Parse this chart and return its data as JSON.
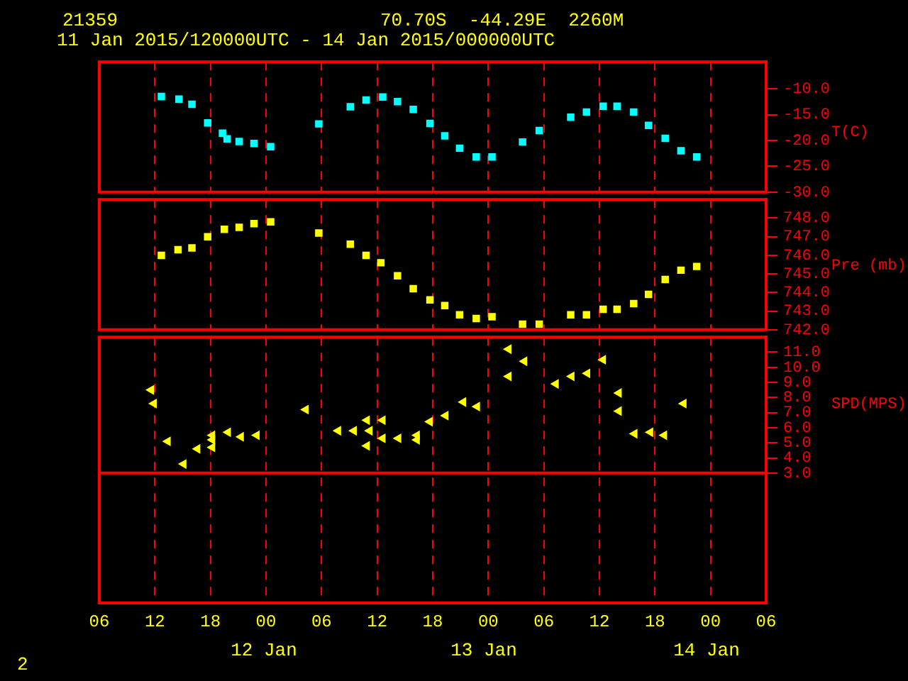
{
  "chart_data": [
    {
      "type": "scatter",
      "title": "21359",
      "subtitle": "11 Jan 2015/120000UTC - 14 Jan 2015/000000UTC",
      "annotations": [
        "70.70S  -44.29E  2260M"
      ],
      "ylabel": "T(C)",
      "marker": "square",
      "grid": "x",
      "tick_labels": "y",
      "xlim": [
        6,
        78
      ],
      "xticks": [
        {
          "value": 6,
          "label": null
        },
        {
          "value": 12,
          "label": null
        },
        {
          "value": 18,
          "label": null
        },
        {
          "value": 24,
          "label": null
        },
        {
          "value": 30,
          "label": null
        },
        {
          "value": 36,
          "label": null
        },
        {
          "value": 42,
          "label": null
        },
        {
          "value": 48,
          "label": null
        },
        {
          "value": 54,
          "label": null
        },
        {
          "value": 60,
          "label": null
        },
        {
          "value": 66,
          "label": null
        },
        {
          "value": 72,
          "label": null
        },
        {
          "value": 78,
          "label": null
        }
      ],
      "ylim": [
        -30,
        -4.8
      ],
      "yticks": [
        {
          "value": -10,
          "label": "-10.0"
        },
        {
          "value": -15,
          "label": "-15.0"
        },
        {
          "value": -20,
          "label": "-20.0"
        },
        {
          "value": -25,
          "label": "-25.0"
        },
        {
          "value": -30,
          "label": "-30.0"
        }
      ],
      "series": [
        {
          "color": "#00ffff",
          "x": [
            12.7,
            14.6,
            16.0,
            17.7,
            19.3,
            19.8,
            21.1,
            22.7,
            24.5,
            29.7,
            33.1,
            34.8,
            36.6,
            38.2,
            39.9,
            41.7,
            43.3,
            44.9,
            46.7,
            48.4,
            51.7,
            53.5,
            56.9,
            58.6,
            60.4,
            61.9,
            63.7,
            65.3,
            67.1,
            68.8,
            70.5
          ],
          "values": [
            -11.5,
            -12.0,
            -13.0,
            -16.6,
            -18.6,
            -19.7,
            -20.2,
            -20.6,
            -21.2,
            -16.8,
            -13.5,
            -12.2,
            -11.6,
            -12.5,
            -14.0,
            -16.7,
            -19.1,
            -21.5,
            -23.2,
            -23.2,
            -20.3,
            -18.1,
            -15.5,
            -14.5,
            -13.4,
            -13.4,
            -14.5,
            -17.1,
            -19.6,
            -22.0,
            -23.2
          ]
        }
      ]
    },
    {
      "type": "scatter",
      "ylabel": "Pre (mb)",
      "marker": "square",
      "grid": "x",
      "tick_labels": "y",
      "xlim": [
        6,
        78
      ],
      "xticks": [
        {
          "value": 6,
          "label": null
        },
        {
          "value": 12,
          "label": null
        },
        {
          "value": 18,
          "label": null
        },
        {
          "value": 24,
          "label": null
        },
        {
          "value": 30,
          "label": null
        },
        {
          "value": 36,
          "label": null
        },
        {
          "value": 42,
          "label": null
        },
        {
          "value": 48,
          "label": null
        },
        {
          "value": 54,
          "label": null
        },
        {
          "value": 60,
          "label": null
        },
        {
          "value": 66,
          "label": null
        },
        {
          "value": 72,
          "label": null
        },
        {
          "value": 78,
          "label": null
        }
      ],
      "ylim": [
        742,
        749
      ],
      "yticks": [
        {
          "value": 742,
          "label": "742.0"
        },
        {
          "value": 743,
          "label": "743.0"
        },
        {
          "value": 744,
          "label": "744.0"
        },
        {
          "value": 745,
          "label": "745.0"
        },
        {
          "value": 746,
          "label": "746.0"
        },
        {
          "value": 747,
          "label": "747.0"
        },
        {
          "value": 748,
          "label": "748.0"
        }
      ],
      "series": [
        {
          "color": "#ffff00",
          "x": [
            12.7,
            14.5,
            16.0,
            17.7,
            19.5,
            21.1,
            22.7,
            24.5,
            29.7,
            33.1,
            34.8,
            36.4,
            38.2,
            39.9,
            41.7,
            43.3,
            44.9,
            46.7,
            48.4,
            51.7,
            53.5,
            56.9,
            58.6,
            60.4,
            61.9,
            63.7,
            65.3,
            67.1,
            68.8,
            70.5
          ],
          "values": [
            746.0,
            746.3,
            746.4,
            747.0,
            747.4,
            747.5,
            747.7,
            747.8,
            747.2,
            746.6,
            746.0,
            745.6,
            744.9,
            744.2,
            743.6,
            743.3,
            742.8,
            742.6,
            742.7,
            742.3,
            742.3,
            742.8,
            742.8,
            743.1,
            743.1,
            743.4,
            743.9,
            744.7,
            745.2,
            745.4
          ]
        }
      ]
    },
    {
      "type": "scatter",
      "ylabel": "SPD(MPS)",
      "marker": "triangle",
      "grid": "x",
      "annotations": [
        "12 Jan",
        "13 Jan",
        "14 Jan",
        "2"
      ],
      "ref_lines": [
        {
          "axis": "y",
          "value": 3,
          "color": "#ff0000"
        }
      ],
      "xlim": [
        6,
        78
      ],
      "xticks": [
        {
          "value": 6,
          "label": "06"
        },
        {
          "value": 12,
          "label": "12"
        },
        {
          "value": 18,
          "label": "18"
        },
        {
          "value": 24,
          "label": "00"
        },
        {
          "value": 30,
          "label": "06"
        },
        {
          "value": 36,
          "label": "12"
        },
        {
          "value": 42,
          "label": "18"
        },
        {
          "value": 48,
          "label": "00"
        },
        {
          "value": 54,
          "label": "06"
        },
        {
          "value": 60,
          "label": "12"
        },
        {
          "value": 66,
          "label": "18"
        },
        {
          "value": 72,
          "label": "00"
        },
        {
          "value": 78,
          "label": "06"
        }
      ],
      "ylim": [
        -5.6,
        12
      ],
      "yticks": [
        {
          "value": 3,
          "label": "3.0"
        },
        {
          "value": 4,
          "label": "4.0"
        },
        {
          "value": 5,
          "label": "5.0"
        },
        {
          "value": 6,
          "label": "6.0"
        },
        {
          "value": 7,
          "label": "7.0"
        },
        {
          "value": 8,
          "label": "8.0"
        },
        {
          "value": 9,
          "label": "9.0"
        },
        {
          "value": 10,
          "label": "10.0"
        },
        {
          "value": 11,
          "label": "11.0"
        }
      ],
      "series": [
        {
          "color": "#ffff00",
          "x": [
            11.6,
            11.9,
            13.4,
            15.1,
            16.6,
            18.2,
            18.2,
            18.2,
            19.9,
            21.3,
            23.0,
            28.3,
            31.8,
            33.5,
            35.2,
            34.9,
            36.6,
            34.9,
            36.6,
            38.3,
            40.3,
            40.3,
            41.7,
            43.4,
            45.3,
            46.8,
            50.2,
            51.9,
            50.2,
            55.3,
            57.0,
            58.7,
            60.4,
            62.1,
            62.1,
            63.8,
            65.5,
            67.0,
            69.1
          ],
          "values": [
            8.5,
            7.6,
            5.1,
            3.6,
            4.6,
            4.7,
            5.2,
            5.5,
            5.7,
            5.4,
            5.5,
            7.2,
            5.8,
            5.8,
            5.8,
            6.5,
            6.5,
            4.8,
            5.3,
            5.3,
            5.5,
            5.2,
            6.4,
            6.8,
            7.7,
            7.4,
            11.2,
            10.4,
            9.4,
            8.9,
            9.4,
            9.6,
            10.5,
            8.3,
            7.1,
            5.6,
            5.7,
            5.5,
            7.6
          ]
        }
      ]
    }
  ]
}
